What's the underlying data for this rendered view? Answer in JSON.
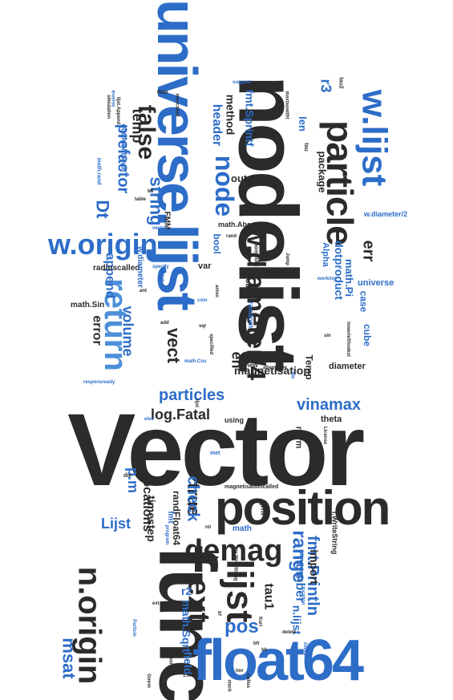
{
  "palette": {
    "dark": "#2b2b2b",
    "blue": "#2d6dc8",
    "lightblue": "#4d8fd9"
  },
  "words": [
    {
      "text": "Vector",
      "color": "#2b2b2b"
    },
    {
      "text": "nodelist",
      "color": "#2b2b2b"
    },
    {
      "text": "universe.lijst",
      "color": "#2d6dc8"
    },
    {
      "text": "func",
      "color": "#2b2b2b"
    },
    {
      "text": "float64",
      "color": "#2d6dc8"
    },
    {
      "text": "position",
      "color": "#2b2b2b"
    },
    {
      "text": "particle",
      "color": "#2b2b2b"
    },
    {
      "text": "w.lijst",
      "color": "#2d6dc8"
    },
    {
      "text": "return",
      "color": "#4d8fd9"
    },
    {
      "text": "w.origin",
      "color": "#2d6dc8"
    },
    {
      "text": "w.diameter/4",
      "color": "#2b2b2b"
    },
    {
      "text": "n.origin",
      "color": "#2b2b2b"
    },
    {
      "text": "lijst",
      "color": "#2b2b2b"
    },
    {
      "text": "demag",
      "color": "#2b2b2b"
    },
    {
      "text": "ext",
      "color": "#2b2b2b"
    },
    {
      "text": "false",
      "color": "#2b2b2b"
    },
    {
      "text": "node",
      "color": "#2d6dc8"
    },
    {
      "text": "msat",
      "color": "#2d6dc8"
    },
    {
      "text": "range",
      "color": "#2d6dc8"
    },
    {
      "text": "pos",
      "color": "#2d6dc8"
    },
    {
      "text": "particles",
      "color": "#2d6dc8"
    },
    {
      "text": "prefactor",
      "color": "#2d6dc8"
    },
    {
      "text": "vinamax",
      "color": "#2d6dc8"
    },
    {
      "text": "log.Fatal",
      "color": "#2b2b2b"
    },
    {
      "text": "string",
      "color": "#2d6dc8"
    },
    {
      "text": "true",
      "color": "#2b2b2b"
    },
    {
      "text": "check",
      "color": "#2d6dc8"
    },
    {
      "text": "Lijst",
      "color": "#2d6dc8"
    },
    {
      "text": "Dt",
      "color": "#2d6dc8"
    },
    {
      "text": "p.m",
      "color": "#2d6dc8"
    },
    {
      "text": "fmt.Println",
      "color": "#2d6dc8"
    },
    {
      "text": "vect",
      "color": "#2b2b2b"
    },
    {
      "text": "err",
      "color": "#2b2b2b"
    },
    {
      "text": "en",
      "color": "#2b2b2b"
    },
    {
      "text": "volume",
      "color": "#2d6dc8"
    },
    {
      "text": "header",
      "color": "#2d6dc8"
    },
    {
      "text": "temp",
      "color": "#2b2b2b"
    },
    {
      "text": "r3",
      "color": "#2d6dc8"
    },
    {
      "text": "method",
      "color": "#2b2b2b"
    },
    {
      "text": "fmt.Sprintf",
      "color": "#2d6dc8"
    },
    {
      "text": "error",
      "color": "#2b2b2b"
    },
    {
      "text": "append",
      "color": "#2d6dc8"
    },
    {
      "text": "locations",
      "color": "#2b2b2b"
    },
    {
      "text": "timestep",
      "color": "#2b2b2b"
    },
    {
      "text": "randFloat64",
      "color": "#2b2b2b"
    },
    {
      "text": "number",
      "color": "#2d6dc8"
    },
    {
      "text": "import",
      "color": "#2b2b2b"
    },
    {
      "text": "tau1",
      "color": "#2b2b2b"
    },
    {
      "text": "r2",
      "color": "#2d6dc8"
    },
    {
      "text": "math.Sqrt",
      "color": "#2d6dc8"
    },
    {
      "text": "field",
      "color": "#2d6dc8"
    },
    {
      "text": "n.lijst",
      "color": "#2d6dc8"
    },
    {
      "text": "magnetisation",
      "color": "#2b2b2b"
    },
    {
      "text": "dotproduct",
      "color": "#2d6dc8"
    },
    {
      "text": "math.Pi",
      "color": "#2d6dc8"
    },
    {
      "text": "case",
      "color": "#2d6dc8"
    },
    {
      "text": "cube",
      "color": "#2d6dc8"
    },
    {
      "text": "Temp",
      "color": "#2b2b2b"
    },
    {
      "text": "diameter",
      "color": "#2b2b2b"
    },
    {
      "text": "theta",
      "color": "#2b2b2b"
    },
    {
      "text": "norm",
      "color": "#2b2b2b"
    },
    {
      "text": "universe",
      "color": "#2d6dc8"
    },
    {
      "text": "Alpha",
      "color": "#2d6dc8"
    },
    {
      "text": "len",
      "color": "#2d6dc8"
    },
    {
      "text": "package",
      "color": "#2b2b2b"
    },
    {
      "text": "output",
      "color": "#2b2b2b"
    },
    {
      "text": "r5",
      "color": "#2b2b2b"
    },
    {
      "text": "bool",
      "color": "#2d6dc8"
    },
    {
      "text": "var",
      "color": "#2b2b2b"
    },
    {
      "text": "radiuscalled",
      "color": "#2b2b2b"
    },
    {
      "text": "w.diameter",
      "color": "#2d6dc8"
    },
    {
      "text": "math.Sin",
      "color": "#2b2b2b"
    },
    {
      "text": "FMM",
      "color": "#2b2b2b"
    },
    {
      "text": "w.diameter/2",
      "color": "#2d6dc8"
    },
    {
      "text": "math.Abs",
      "color": "#2b2b2b"
    },
    {
      "text": "put",
      "color": "#2b2b2b"
    },
    {
      "text": "fmt",
      "color": "#2d6dc8"
    },
    {
      "text": "math",
      "color": "#2d6dc8"
    },
    {
      "text": "phi",
      "color": "#2b2b2b"
    },
    {
      "text": "using",
      "color": "#2b2b2b"
    },
    {
      "text": "f.WriteString",
      "color": "#2b2b2b"
    },
    {
      "text": "magnetisationcalled",
      "color": "#2b2b2b"
    },
    {
      "text": "outdir",
      "color": "#2b2b2b"
    },
    {
      "text": "random",
      "color": "#2d6dc8"
    },
    {
      "text": "new",
      "color": "#2b2b2b"
    },
    {
      "text": "nomifoot",
      "color": "#2b2b2b"
    },
    {
      "text": "tau",
      "color": "#2b2b2b"
    },
    {
      "text": "tau2",
      "color": "#2b2b2b"
    },
    {
      "text": "maxtauwitht",
      "color": "#2b2b2b"
    },
    {
      "text": "suggest",
      "color": "#2d6dc8"
    },
    {
      "text": "Run",
      "color": "#2b2b2b"
    },
    {
      "text": "outputinterval",
      "color": "#2d6dc8"
    },
    {
      "text": "math.rand",
      "color": "#2d6dc8"
    },
    {
      "text": "lijst.Append",
      "color": "#2b2b2b"
    },
    {
      "text": "working",
      "color": "#2d6dc8"
    },
    {
      "text": "file",
      "color": "#2d6dc8"
    },
    {
      "text": "delete",
      "color": "#2b2b2b"
    },
    {
      "text": "Gives",
      "color": "#2d6dc8"
    },
    {
      "text": "Particle",
      "color": "#2d6dc8"
    },
    {
      "text": "License",
      "color": "#2b2b2b"
    },
    {
      "text": "brf",
      "color": "#2b2b2b"
    },
    {
      "text": "math.Cos",
      "color": "#2d6dc8"
    },
    {
      "text": "bfr",
      "color": "#2b2b2b"
    },
    {
      "text": "simulation",
      "color": "#2b2b2b"
    },
    {
      "text": "nil",
      "color": "#2b2b2b"
    },
    {
      "text": "sqr",
      "color": "#2b2b2b"
    },
    {
      "text": "add",
      "color": "#2b2b2b"
    },
    {
      "text": "responsready",
      "color": "#2d6dc8"
    },
    {
      "text": "mescalled",
      "color": "#2b2b2b"
    },
    {
      "text": "table",
      "color": "#2b2b2b"
    },
    {
      "text": "specified",
      "color": "#2b2b2b"
    },
    {
      "text": "Calculates",
      "color": "#2d6dc8"
    },
    {
      "text": "Kurl",
      "color": "#2b2b2b"
    },
    {
      "text": "bb",
      "color": "#2b2b2b"
    },
    {
      "text": "else",
      "color": "#2d6dc8"
    },
    {
      "text": "met",
      "color": "#2d6dc8"
    },
    {
      "text": "die",
      "color": "#2b2b2b"
    },
    {
      "text": "Gmrm",
      "color": "#2b2b2b"
    },
    {
      "text": "bfl",
      "color": "#2b2b2b"
    },
    {
      "text": "vector",
      "color": "#2d6dc8"
    },
    {
      "text": "boost",
      "color": "#2d6dc8"
    },
    {
      "text": "ant",
      "color": "#2b2b2b"
    },
    {
      "text": "inverse",
      "color": "#2d6dc8"
    },
    {
      "text": "program",
      "color": "#2d6dc8"
    },
    {
      "text": "location",
      "color": "#2d6dc8"
    },
    {
      "text": "radius",
      "color": "#2b2b2b"
    },
    {
      "text": "tmr",
      "color": "#2b2b2b"
    },
    {
      "text": "stack",
      "color": "#2b2b2b"
    },
    {
      "text": "lijst",
      "color": "#2b2b2b"
    },
    {
      "text": "file.WriteString",
      "color": "#2b2b2b"
    },
    {
      "text": "lowerleftfowkst",
      "color": "#2b2b2b"
    },
    {
      "text": "rand",
      "color": "#2b2b2b"
    },
    {
      "text": "specify",
      "color": "#2d6dc8"
    },
    {
      "text": "aniso",
      "color": "#2b2b2b"
    },
    {
      "text": "com",
      "color": "#2d6dc8"
    },
    {
      "text": "bf",
      "color": "#2b2b2b"
    },
    {
      "text": "sin",
      "color": "#2b2b2b"
    },
    {
      "text": "1.Write",
      "color": "#2b2b2b"
    },
    {
      "text": "repeated",
      "color": "#2b2b2b"
    },
    {
      "text": "alternative",
      "color": "#2b2b2b"
    },
    {
      "text": "Jump",
      "color": "#2b2b2b"
    },
    {
      "text": "ext",
      "color": "#2b2b2b"
    },
    {
      "text": "tle",
      "color": "#2b2b2b"
    },
    {
      "text": "mag",
      "color": "#2b2b2b"
    }
  ]
}
